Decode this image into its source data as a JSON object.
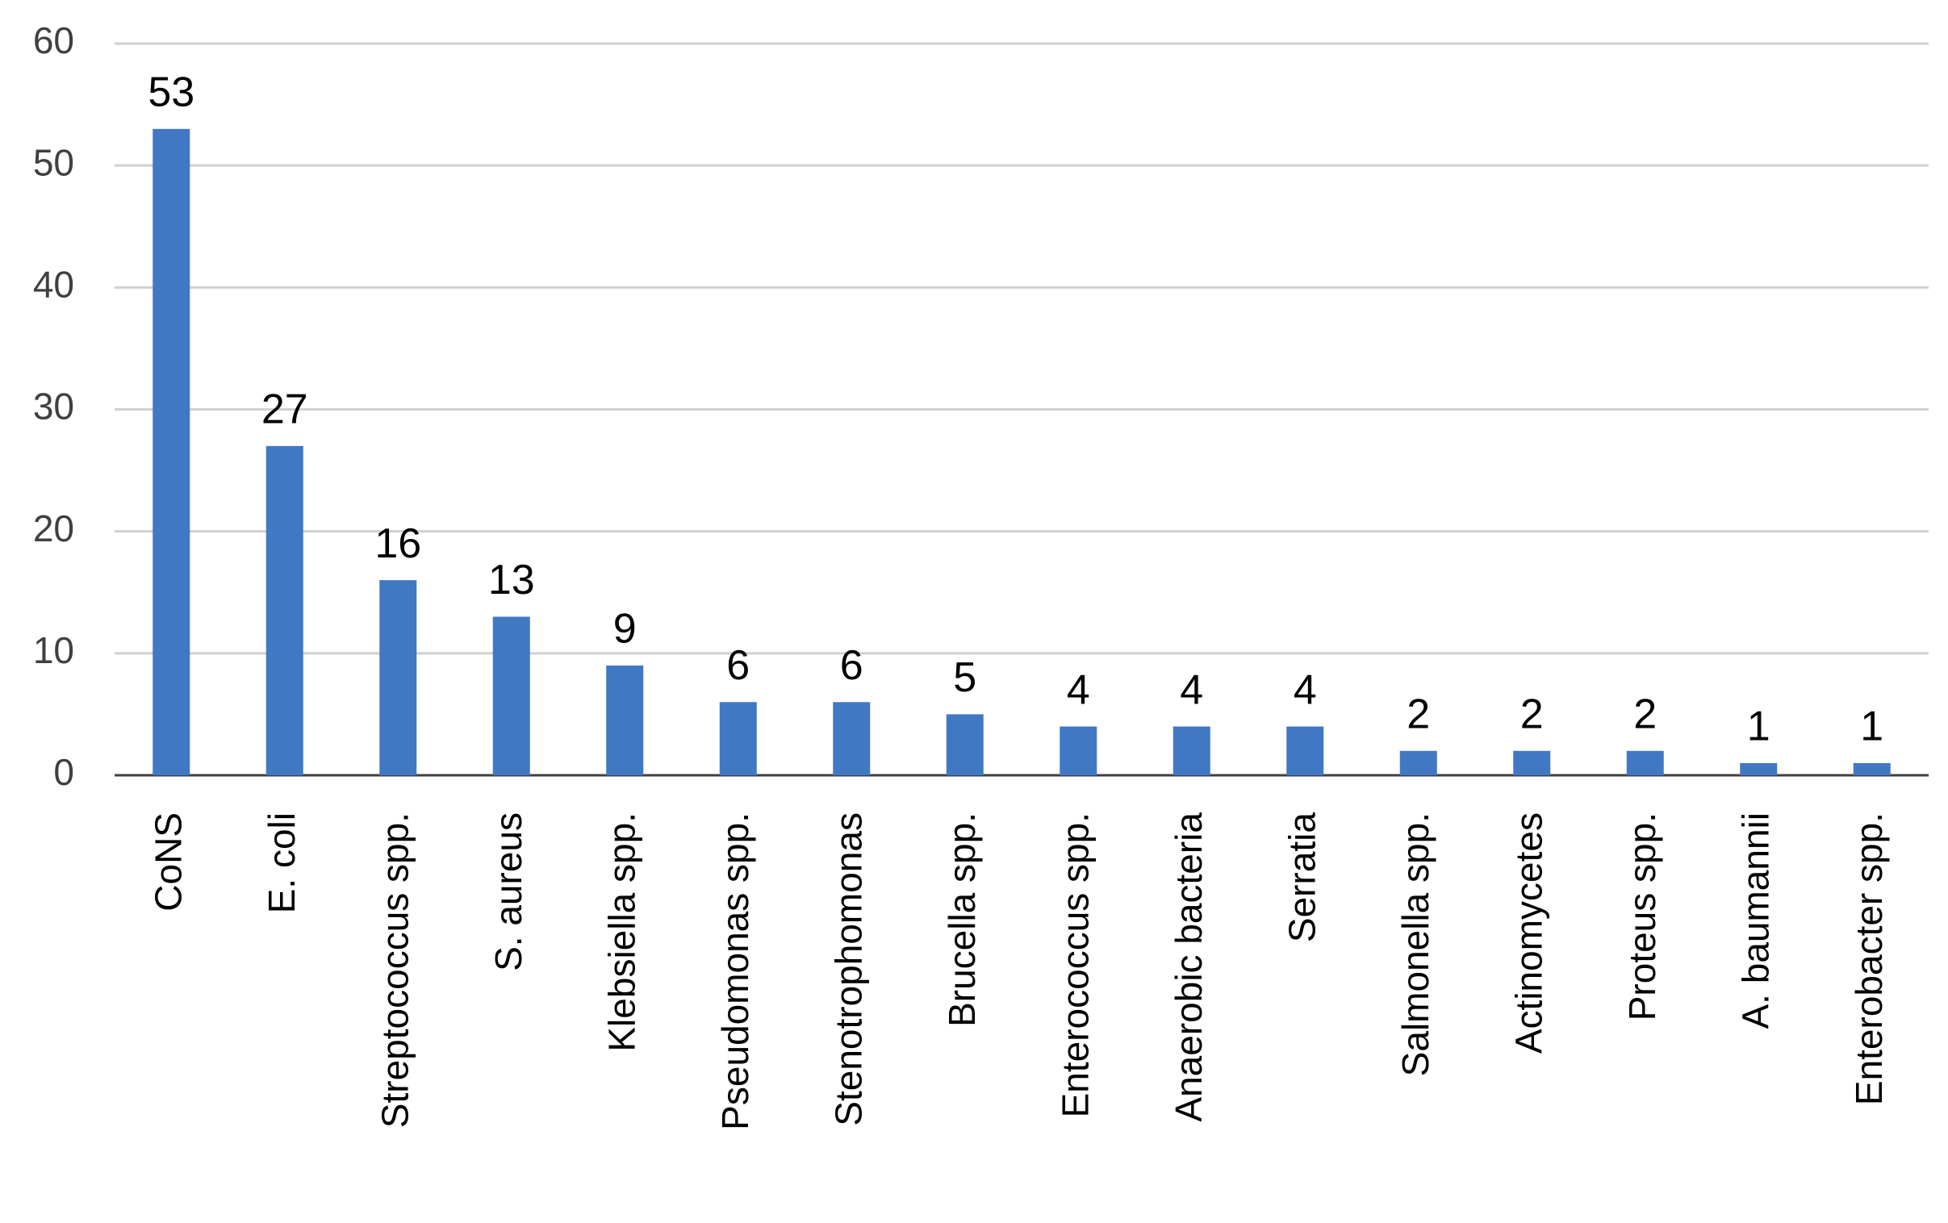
{
  "chart_data": {
    "type": "bar",
    "categories": [
      "CoNS",
      "E. coli",
      "Streptococcus spp.",
      "S. aureus",
      "Klebsiella spp.",
      "Pseudomonas spp.",
      "Stenotrophomonas",
      "Brucella spp.",
      "Enterococcus spp.",
      "Anaerobic bacteria",
      "Serratia",
      "Salmonella spp.",
      "Actinomycetes",
      "Proteus spp.",
      "A. baumannii",
      "Enterobacter spp."
    ],
    "values": [
      53,
      27,
      16,
      13,
      9,
      6,
      6,
      5,
      4,
      4,
      4,
      2,
      2,
      2,
      1,
      1
    ],
    "color": "#4178c4",
    "ylim": [
      0,
      60
    ],
    "yticks": [
      0,
      10,
      20,
      30,
      40,
      50,
      60
    ],
    "grid": true
  }
}
